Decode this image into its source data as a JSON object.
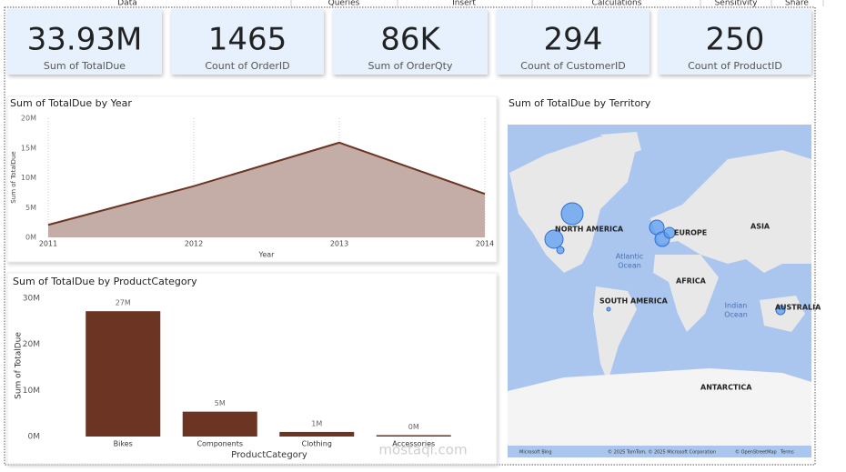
{
  "ribbon": [
    "Data",
    "Queries",
    "Insert",
    "Calculations",
    "Sensitivity",
    "Share"
  ],
  "cards": [
    {
      "value": "33.93M",
      "label": "Sum of TotalDue"
    },
    {
      "value": "1465",
      "label": "Count of OrderID"
    },
    {
      "value": "86K",
      "label": "Sum of OrderQty"
    },
    {
      "value": "294",
      "label": "Count of CustomerID"
    },
    {
      "value": "250",
      "label": "Count of ProductID"
    }
  ],
  "chart_data": [
    {
      "type": "area",
      "title": "Sum of TotalDue by Year",
      "x_label": "Year",
      "y_label": "Sum of TotalDue",
      "color": "#6b3423",
      "fill": "#c4ada6",
      "x": [
        2011,
        2012,
        2013,
        2014
      ],
      "values": [
        2100000,
        8600000,
        15900000,
        7300000
      ],
      "xlim": [
        2011,
        2014
      ],
      "xticks": [
        2011,
        2012,
        2013,
        2014
      ],
      "ylim": [
        0,
        20000000
      ],
      "yticks": [
        {
          "value": 0,
          "label": "0M"
        },
        {
          "value": 5000000,
          "label": "5M"
        },
        {
          "value": 10000000,
          "label": "10M"
        },
        {
          "value": 15000000,
          "label": "15M"
        },
        {
          "value": 20000000,
          "label": "20M"
        }
      ],
      "grid": true
    },
    {
      "type": "bar",
      "title": "Sum of TotalDue by ProductCategory",
      "x_label": "ProductCategory",
      "y_label": "Sum of TotalDue",
      "color": "#6b3423",
      "categories": [
        "Bikes",
        "Components",
        "Clothing",
        "Accessories"
      ],
      "values": [
        27200000,
        5400000,
        1000000,
        300000
      ],
      "value_labels": [
        "27M",
        "5M",
        "1M",
        "0M"
      ],
      "ylim": [
        0,
        30000000
      ],
      "yticks": [
        {
          "value": 0,
          "label": "0M"
        },
        {
          "value": 10000000,
          "label": "10M"
        },
        {
          "value": 20000000,
          "label": "20M"
        },
        {
          "value": 30000000,
          "label": "30M"
        }
      ],
      "grid": false
    }
  ],
  "map": {
    "title": "Sum of TotalDue by Territory",
    "labels": [
      "NORTH AMERICA",
      "EUROPE",
      "ASIA",
      "AFRICA",
      "SOUTH AMERICA",
      "AUSTRALIA",
      "ANTARCTICA",
      "Atlantic Ocean",
      "Indian Ocean"
    ],
    "footer": [
      "Microsoft Bing",
      "© 2025 TomTom, © 2025 Microsoft Corporation",
      "© OpenStreetMap",
      "Terms"
    ]
  },
  "watermark": "mostaql.com"
}
